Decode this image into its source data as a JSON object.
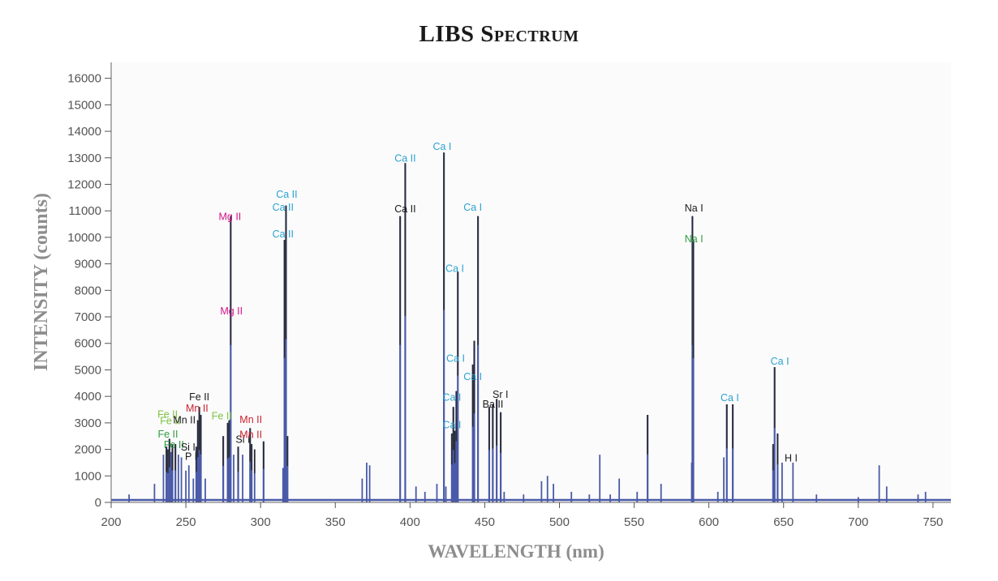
{
  "chart_data": {
    "type": "line",
    "title": "LIBS Spectrum",
    "xlabel": "WAVELENGTH (nm)",
    "ylabel": "INTENSITY (counts)",
    "xlim": [
      200,
      762
    ],
    "ylim": [
      0,
      16600
    ],
    "x_ticks": [
      200,
      250,
      300,
      350,
      400,
      450,
      500,
      550,
      600,
      650,
      700,
      750
    ],
    "y_ticks": [
      0,
      1000,
      2000,
      3000,
      4000,
      5000,
      6000,
      7000,
      8000,
      9000,
      10000,
      11000,
      12000,
      13000,
      14000,
      15000,
      16000
    ],
    "grid": false,
    "colors": {
      "spectrum": "#4a5aa8",
      "black_peak": "#2a2a2a",
      "ca": "#2aa3d0",
      "mg": "#d4148a",
      "mn": "#cc2230",
      "fe_light": "#7cc242",
      "fe_dark": "#2e9e3e",
      "na_green": "#2e9e3e",
      "neutral": "#1a1a1a"
    },
    "series": [
      {
        "x": [
          212,
          229,
          235,
          237,
          238,
          239,
          240,
          241,
          243,
          245,
          247,
          250,
          252,
          255,
          257,
          258,
          259,
          260,
          263,
          275,
          278,
          279,
          280,
          282,
          285,
          288,
          293,
          294,
          296,
          302,
          315,
          316,
          317,
          318,
          368,
          371,
          373,
          393.4,
          396.8,
          404,
          410,
          418,
          422.7,
          424,
          428,
          429,
          430,
          431,
          432,
          442,
          443,
          445.5,
          453,
          455.4,
          458,
          460.7,
          463,
          476,
          488,
          492,
          496,
          508,
          520,
          527,
          534,
          540,
          552,
          559,
          568,
          588.5,
          589.0,
          589.6,
          606,
          610,
          612,
          616,
          643,
          644,
          646,
          649,
          656.3,
          672,
          700,
          714,
          719,
          740,
          745
        ],
        "y": [
          300,
          700,
          1800,
          2100,
          2000,
          2400,
          1900,
          2200,
          2200,
          1800,
          1700,
          1200,
          1400,
          900,
          2100,
          3100,
          3600,
          3300,
          900,
          2500,
          3000,
          3100,
          10800,
          1800,
          2100,
          1800,
          2800,
          2200,
          2000,
          2300,
          1300,
          9900,
          11200,
          2500,
          900,
          1500,
          1400,
          10800,
          12800,
          600,
          400,
          700,
          13200,
          600,
          2600,
          3600,
          2700,
          4200,
          8700,
          5200,
          6100,
          10800,
          3600,
          3700,
          3900,
          3400,
          400,
          300,
          800,
          1000,
          700,
          400,
          300,
          1800,
          300,
          900,
          400,
          3300,
          700,
          1500,
          10800,
          9900,
          400,
          1700,
          3700,
          3700,
          2200,
          5100,
          2600,
          1500,
          1500,
          300,
          200,
          1400,
          600,
          300,
          400
        ]
      }
    ],
    "annotations": [
      {
        "text": "Fe II",
        "x": 237.8,
        "y": 3200,
        "color": "fe_light"
      },
      {
        "text": "Fe II",
        "x": 239.5,
        "y": 2950,
        "color": "fe_light"
      },
      {
        "text": "Fe II",
        "x": 238.0,
        "y": 2450,
        "color": "fe_dark"
      },
      {
        "text": "Fe II",
        "x": 242.0,
        "y": 2050,
        "color": "fe_dark"
      },
      {
        "text": "Mn II",
        "x": 249.0,
        "y": 2980,
        "color": "neutral"
      },
      {
        "text": "Si I",
        "x": 251.5,
        "y": 1950,
        "color": "neutral"
      },
      {
        "text": "P I",
        "x": 253.5,
        "y": 1600,
        "color": "neutral"
      },
      {
        "text": "Fe II",
        "x": 259.0,
        "y": 3850,
        "color": "neutral"
      },
      {
        "text": "Mn II",
        "x": 257.5,
        "y": 3430,
        "color": "mn"
      },
      {
        "text": "Fe II",
        "x": 274.0,
        "y": 3130,
        "color": "fe_light"
      },
      {
        "text": "Mg II",
        "x": 279.5,
        "y": 10650,
        "color": "mg"
      },
      {
        "text": "Mg II",
        "x": 280.5,
        "y": 7100,
        "color": "mg"
      },
      {
        "text": "Si I",
        "x": 288.2,
        "y": 2250,
        "color": "neutral"
      },
      {
        "text": "Mn II",
        "x": 293.5,
        "y": 3000,
        "color": "mn"
      },
      {
        "text": "Mn II",
        "x": 293.5,
        "y": 2430,
        "color": "mn"
      },
      {
        "text": "Ca II",
        "x": 317.5,
        "y": 11500,
        "color": "ca"
      },
      {
        "text": "Ca II",
        "x": 315.0,
        "y": 11000,
        "color": "ca"
      },
      {
        "text": "Ca II",
        "x": 315.0,
        "y": 10000,
        "color": "ca"
      },
      {
        "text": "Ca II",
        "x": 396.8,
        "y": 12850,
        "color": "ca"
      },
      {
        "text": "Ca II",
        "x": 396.8,
        "y": 10950,
        "color": "neutral"
      },
      {
        "text": "Ca I",
        "x": 421.5,
        "y": 13300,
        "color": "ca"
      },
      {
        "text": "Ca I",
        "x": 430.0,
        "y": 8700,
        "color": "ca"
      },
      {
        "text": "Ca I",
        "x": 430.5,
        "y": 5300,
        "color": "ca"
      },
      {
        "text": "Ca I",
        "x": 428.0,
        "y": 3840,
        "color": "ca"
      },
      {
        "text": "Ca I",
        "x": 428.0,
        "y": 2790,
        "color": "ca"
      },
      {
        "text": "Ca I",
        "x": 442.0,
        "y": 11000,
        "color": "ca"
      },
      {
        "text": "Ca I",
        "x": 442.0,
        "y": 4620,
        "color": "ca"
      },
      {
        "text": "Sr I",
        "x": 460.5,
        "y": 3950,
        "color": "neutral"
      },
      {
        "text": "Ba II",
        "x": 455.5,
        "y": 3580,
        "color": "neutral"
      },
      {
        "text": "Na I",
        "x": 590.0,
        "y": 10980,
        "color": "neutral"
      },
      {
        "text": "Na I",
        "x": 590.0,
        "y": 9820,
        "color": "na_green"
      },
      {
        "text": "Ca I",
        "x": 614.0,
        "y": 3820,
        "color": "ca"
      },
      {
        "text": "Ca I",
        "x": 647.5,
        "y": 5200,
        "color": "ca"
      },
      {
        "text": "H I",
        "x": 655.0,
        "y": 1550,
        "color": "neutral"
      }
    ]
  }
}
